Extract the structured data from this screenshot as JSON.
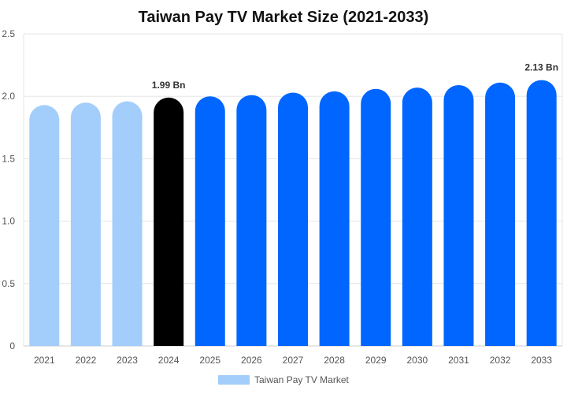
{
  "chart_data": {
    "type": "bar",
    "title": "Taiwan Pay TV Market Size (2021-2033)",
    "xlabel": "",
    "ylabel": "",
    "categories": [
      "2021",
      "2022",
      "2023",
      "2024",
      "2025",
      "2026",
      "2027",
      "2028",
      "2029",
      "2030",
      "2031",
      "2032",
      "2033"
    ],
    "series": [
      {
        "name": "Taiwan Pay TV Market",
        "values": [
          1.93,
          1.95,
          1.96,
          1.99,
          2.0,
          2.01,
          2.03,
          2.04,
          2.06,
          2.07,
          2.09,
          2.11,
          2.13
        ]
      }
    ],
    "ylim": [
      0,
      2.5
    ],
    "yticks": [
      "0",
      "0.5",
      "1.0",
      "1.5",
      "2.0",
      "2.5"
    ],
    "ytick_values": [
      0,
      0.5,
      1.0,
      1.5,
      2.0,
      2.5
    ],
    "data_labels": [
      {
        "category": "2024",
        "text": "1.99 Bn"
      },
      {
        "category": "2033",
        "text": "2.13 Bn"
      }
    ],
    "legend": {
      "position": "bottom",
      "entries": [
        "Taiwan Pay TV Market"
      ]
    },
    "grid": true,
    "bar_colors": {
      "historical": "#a3cdfb",
      "base_year": "#000000",
      "forecast": "#0066ff"
    },
    "legend_color": "#a3cdfb",
    "historical_categories": [
      "2021",
      "2022",
      "2023"
    ],
    "base_year_category": "2024"
  }
}
